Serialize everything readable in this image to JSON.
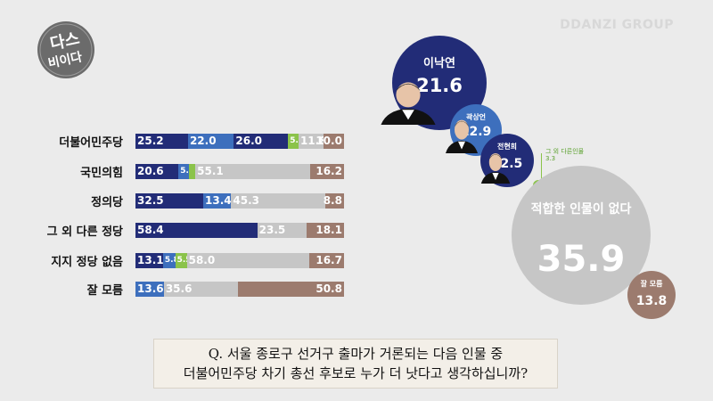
{
  "brand": "DDANZI GROUP",
  "logo_text": "다스비이다",
  "colors": {
    "dark_navy": "#222c77",
    "blue": "#3d6fbd",
    "green": "#8bc34a",
    "gray": "#c6c6c6",
    "brown": "#9c7b6e"
  },
  "chart_data": [
    {
      "type": "bar",
      "stacked": true,
      "orientation": "horizontal",
      "categories": [
        "더불어민주당",
        "국민의힘",
        "정의당",
        "그 외 다른 정당",
        "지지 정당 없음",
        "잘 모름"
      ],
      "series": [
        {
          "name": "이낙연",
          "color": "#222c77",
          "values": [
            25.2,
            20.6,
            32.5,
            58.4,
            13.1,
            0
          ]
        },
        {
          "name": "곽상언",
          "color": "#3d6fbd",
          "values": [
            22.0,
            5.2,
            13.4,
            0,
            5.8,
            13.6
          ]
        },
        {
          "name": "전현희",
          "color": "#222c77",
          "values": [
            26.0,
            0,
            0,
            0,
            0,
            0
          ]
        },
        {
          "name": "그 외 다른인물",
          "color": "#8bc34a",
          "values": [
            5.0,
            2.9,
            0,
            0,
            5.5,
            0
          ]
        },
        {
          "name": "적합한 인물이 없다",
          "color": "#c6c6c6",
          "values": [
            11.8,
            55.1,
            45.3,
            23.5,
            58.0,
            35.6
          ]
        },
        {
          "name": "잘 모름",
          "color": "#9c7b6e",
          "values": [
            10.0,
            16.2,
            8.8,
            18.1,
            16.7,
            50.8
          ]
        }
      ],
      "labels": [
        [
          "25.2",
          "22.0",
          "26.0",
          "5.0",
          "11.8",
          "10.0"
        ],
        [
          "20.6",
          "5.2",
          "",
          "",
          "55.1",
          "16.2"
        ],
        [
          "32.5",
          "13.4",
          "",
          "",
          "45.3",
          "8.8"
        ],
        [
          "58.4",
          "",
          "",
          "",
          "23.5",
          "18.1"
        ],
        [
          "13.1",
          "5.8",
          "",
          "5.5",
          "58.0",
          "16.7"
        ],
        [
          "",
          "13.6",
          "",
          "",
          "35.6",
          "50.8"
        ]
      ]
    },
    {
      "type": "bubble",
      "items": [
        {
          "name": "이낙연",
          "value": 21.6,
          "color": "#222c77"
        },
        {
          "name": "곽상언",
          "value": 12.9,
          "color": "#3d6fbd"
        },
        {
          "name": "전현희",
          "value": 12.5,
          "color": "#222c77"
        },
        {
          "name": "그 외 다른인물",
          "value": 3.3,
          "color": "#8bc34a"
        },
        {
          "name": "적합한 인물이 없다",
          "value": 35.9,
          "color": "#c6c6c6"
        },
        {
          "name": "잘 모름",
          "value": 13.8,
          "color": "#9c7b6e"
        }
      ]
    }
  ],
  "question": {
    "line1": "Q.  서울 종로구 선거구 출마가 거론되는 다음 인물 중",
    "line2": "더불어민주당 차기 총선 후보로 누가 더 낫다고 생각하십니까?"
  }
}
